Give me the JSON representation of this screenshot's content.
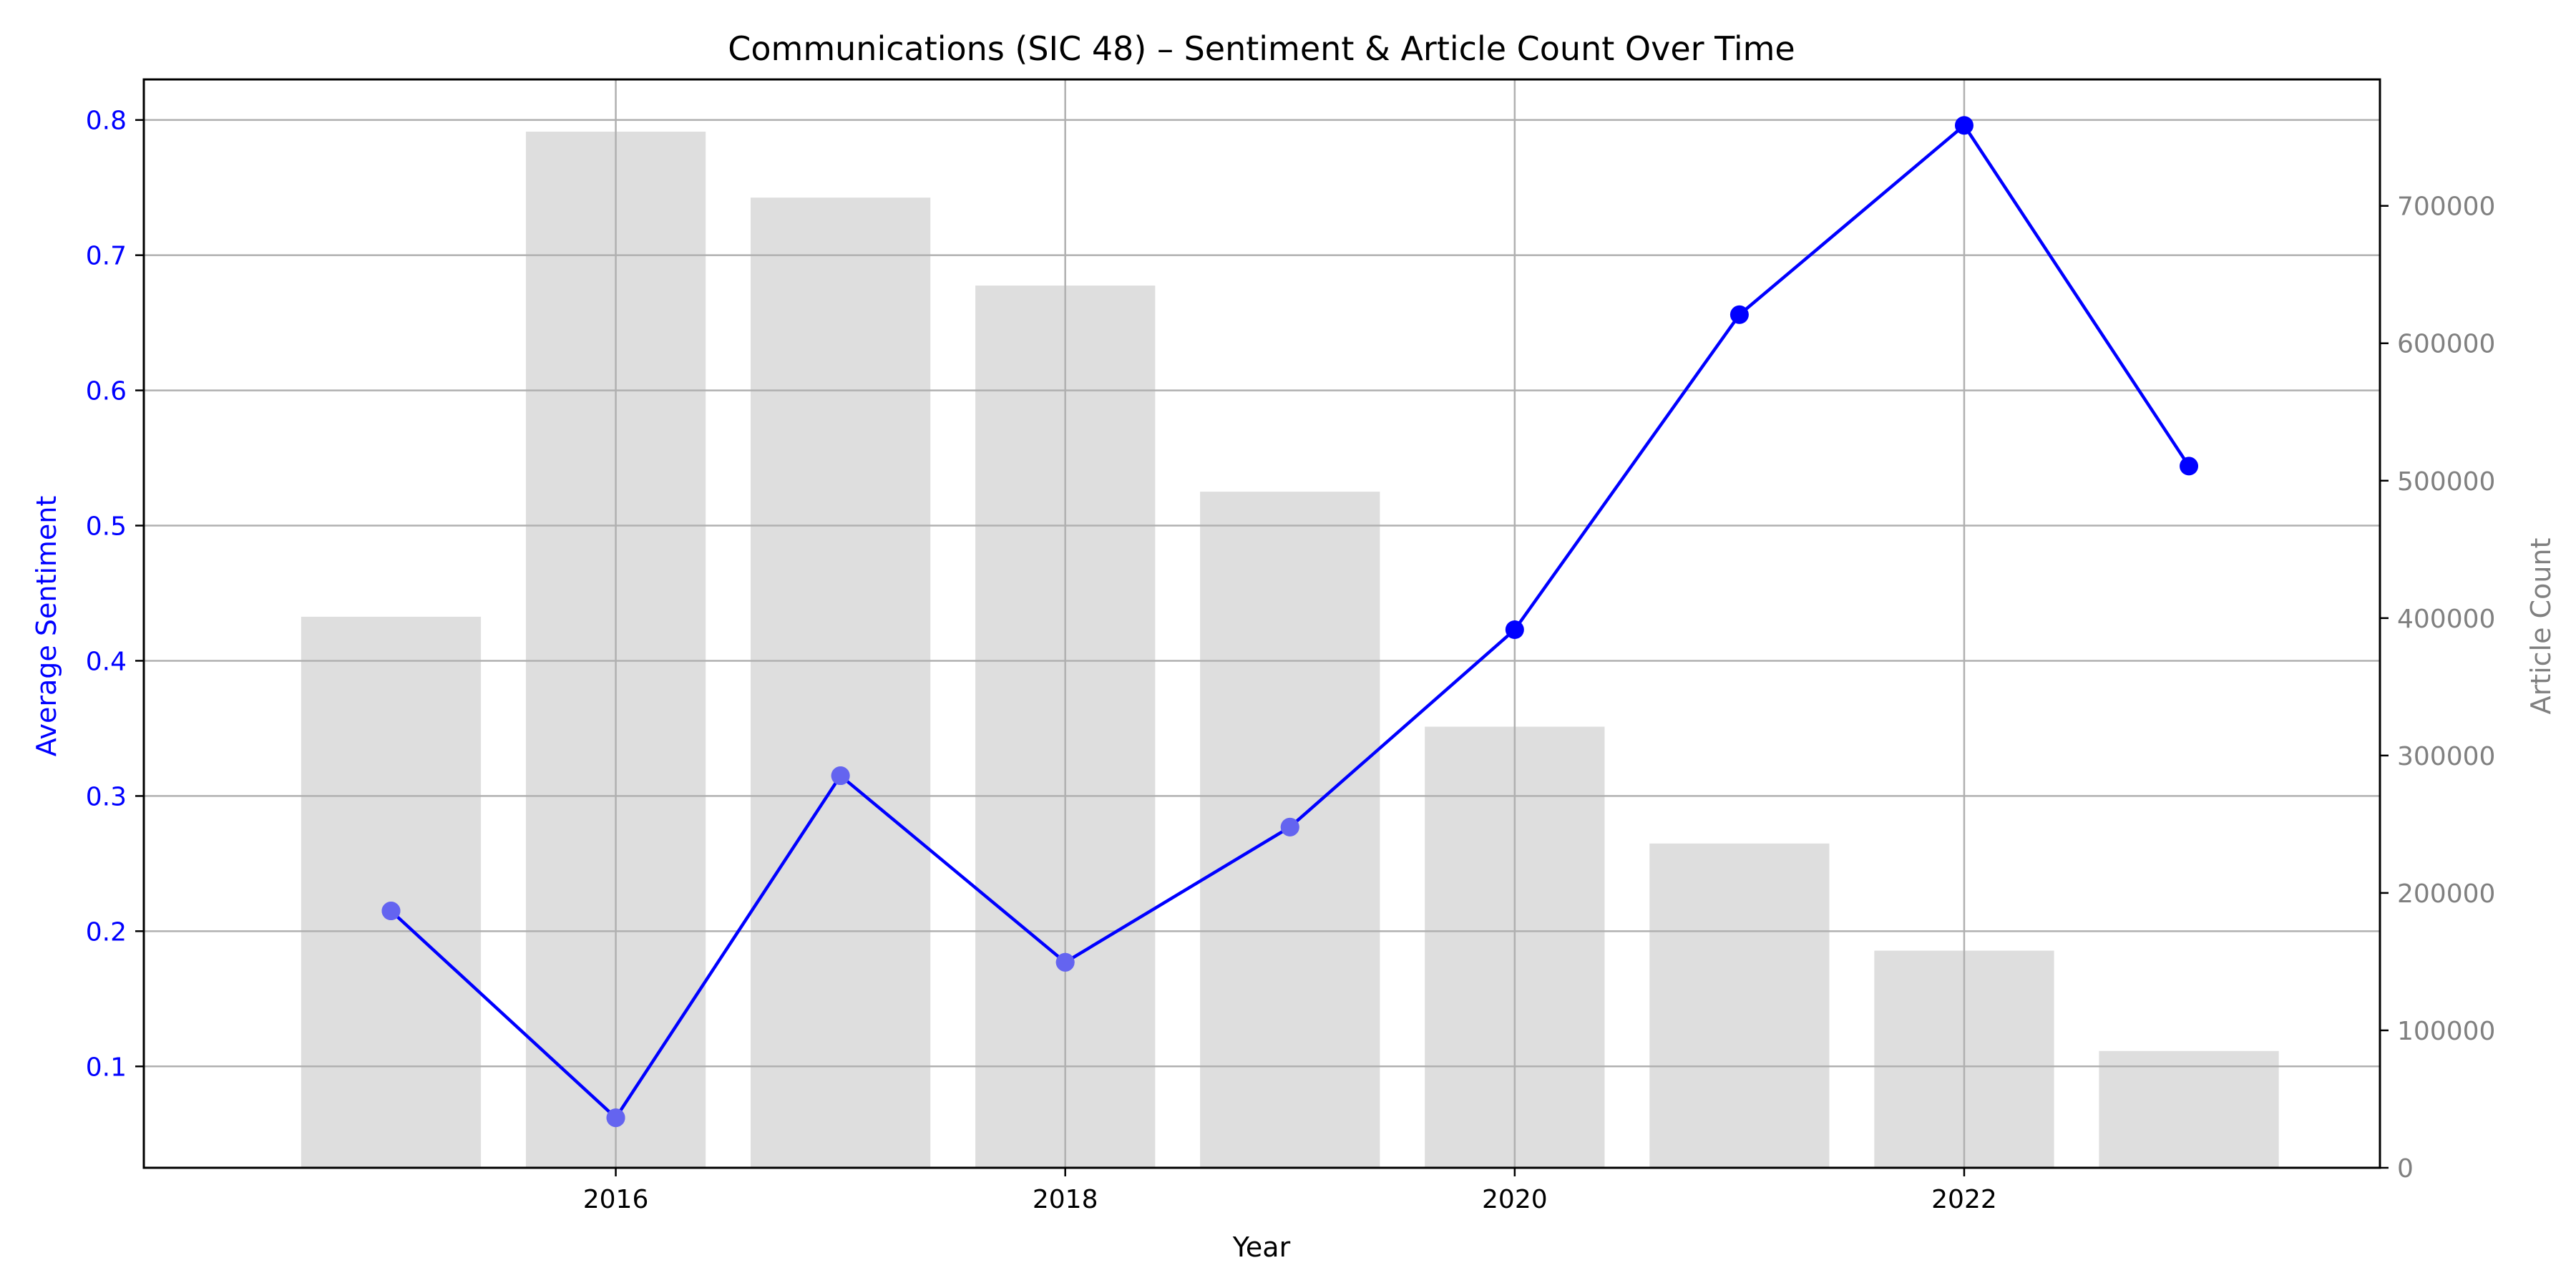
{
  "chart_data": {
    "type": "bar+line",
    "title": "Communications (SIC 48) – Sentiment & Article Count Over Time",
    "xlabel": "Year",
    "ylabel_left": "Average Sentiment",
    "ylabel_right": "Article Count",
    "x": [
      2015,
      2016,
      2017,
      2018,
      2019,
      2020,
      2021,
      2022,
      2023
    ],
    "x_ticks": [
      2016,
      2018,
      2020,
      2022
    ],
    "xlim": [
      2013.9,
      2023.85
    ],
    "ylim_left": [
      0.025,
      0.83
    ],
    "yticks_left": [
      0.1,
      0.2,
      0.3,
      0.4,
      0.5,
      0.6,
      0.7,
      0.8
    ],
    "ylim_right": [
      0,
      792000
    ],
    "yticks_right": [
      0,
      100000,
      200000,
      300000,
      400000,
      500000,
      600000,
      700000
    ],
    "grid": true,
    "series": [
      {
        "name": "",
        "type": "bar",
        "axis": "right",
        "color": "#dedede",
        "values": [
          401000,
          754000,
          706000,
          642000,
          492000,
          321000,
          236000,
          158000,
          85000
        ]
      },
      {
        "name": "",
        "type": "line",
        "axis": "left",
        "color": "#0000ff",
        "values": [
          0.215,
          0.062,
          0.315,
          0.177,
          0.277,
          0.423,
          0.656,
          0.796,
          0.544
        ]
      }
    ],
    "colors": {
      "left_axis": "#0000ff",
      "right_axis": "#808080",
      "grid": "#b0b0b0",
      "overlay_marker": "#9a9ae6"
    }
  }
}
